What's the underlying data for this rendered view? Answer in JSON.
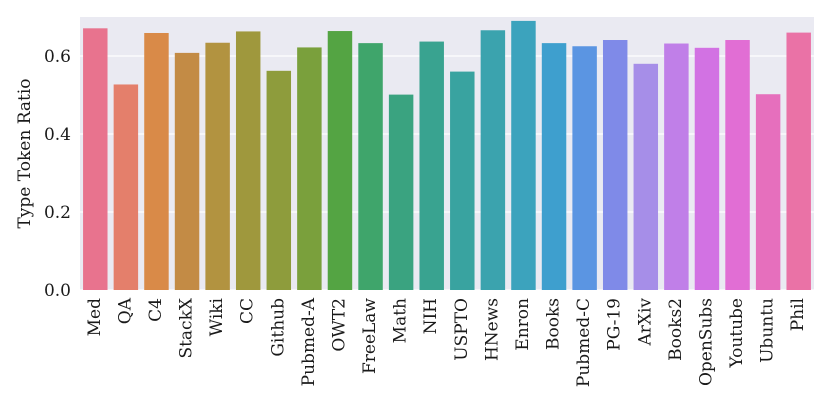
{
  "chart_data": {
    "type": "bar",
    "title": "",
    "xlabel": "",
    "ylabel": "Type Token Ratio",
    "ylim": [
      0,
      0.7
    ],
    "yticks": [
      0.0,
      0.2,
      0.4,
      0.6
    ],
    "ytick_labels": [
      "0.0",
      "0.2",
      "0.4",
      "0.6"
    ],
    "grid": "horizontal",
    "categories": [
      "Med",
      "QA",
      "C4",
      "StackX",
      "Wiki",
      "CC",
      "Github",
      "Pubmed-A",
      "OWT2",
      "FreeLaw",
      "Math",
      "NIH",
      "USPTO",
      "HNews",
      "Enron",
      "Books",
      "Pubmed-C",
      "PG-19",
      "ArXiv",
      "Books2",
      "OpenSubs",
      "Youtube",
      "Ubuntu",
      "Phil"
    ],
    "values": [
      0.671,
      0.527,
      0.659,
      0.608,
      0.634,
      0.663,
      0.562,
      0.622,
      0.664,
      0.633,
      0.501,
      0.637,
      0.56,
      0.666,
      0.69,
      0.633,
      0.625,
      0.641,
      0.58,
      0.632,
      0.621,
      0.641,
      0.502,
      0.66
    ],
    "colors": [
      "#e8738e",
      "#e47f6b",
      "#d98a48",
      "#c38b45",
      "#b29340",
      "#9f983d",
      "#8e9c3c",
      "#7aa03c",
      "#54a443",
      "#3fa56b",
      "#3aa380",
      "#39a390",
      "#39a3a0",
      "#3ba3ae",
      "#3ca3bd",
      "#3e9fce",
      "#5b95e2",
      "#7f8ae8",
      "#a68ee8",
      "#c07fe8",
      "#d272e3",
      "#e16ed4",
      "#e66fbd",
      "#ea72a6"
    ],
    "background": "#eaeaf2",
    "grid_color": "#ffffff"
  }
}
